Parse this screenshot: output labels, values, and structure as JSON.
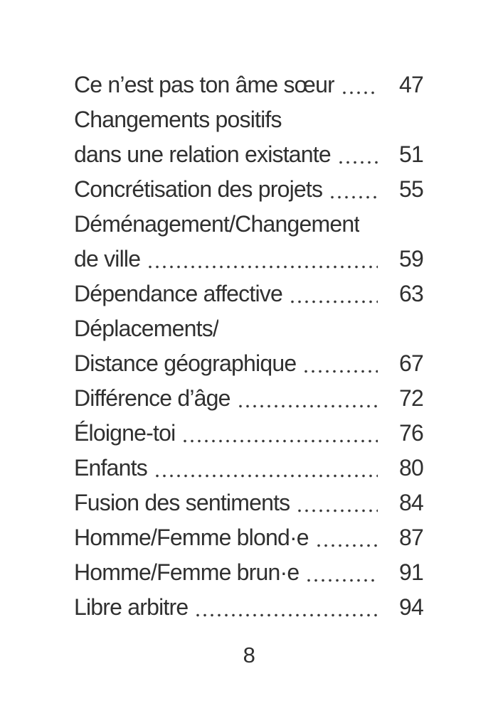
{
  "theme": {
    "background_color": "#ffffff",
    "text_color": "#303030"
  },
  "toc": {
    "entries": [
      {
        "lines": [
          "Ce n’est pas ton âme sœur"
        ],
        "page": "47"
      },
      {
        "lines": [
          "Changements positifs",
          "dans une relation existante"
        ],
        "page": "51"
      },
      {
        "lines": [
          "Concrétisation des projets"
        ],
        "page": "55"
      },
      {
        "lines": [
          "Déménagement/Changement",
          "de ville"
        ],
        "page": "59"
      },
      {
        "lines": [
          "Dépendance affective"
        ],
        "page": "63"
      },
      {
        "lines": [
          "Déplacements/",
          "Distance géographique"
        ],
        "page": "67"
      },
      {
        "lines": [
          "Différence d’âge"
        ],
        "page": "72"
      },
      {
        "lines": [
          "Éloigne-toi"
        ],
        "page": "76"
      },
      {
        "lines": [
          "Enfants"
        ],
        "page": "80"
      },
      {
        "lines": [
          "Fusion des sentiments"
        ],
        "page": "84"
      },
      {
        "lines": [
          "Homme/Femme blond·e"
        ],
        "page": "87"
      },
      {
        "lines": [
          "Homme/Femme brun·e"
        ],
        "page": "91"
      },
      {
        "lines": [
          "Libre arbitre"
        ],
        "page": "94"
      }
    ]
  },
  "footer": {
    "page_number": "8"
  }
}
